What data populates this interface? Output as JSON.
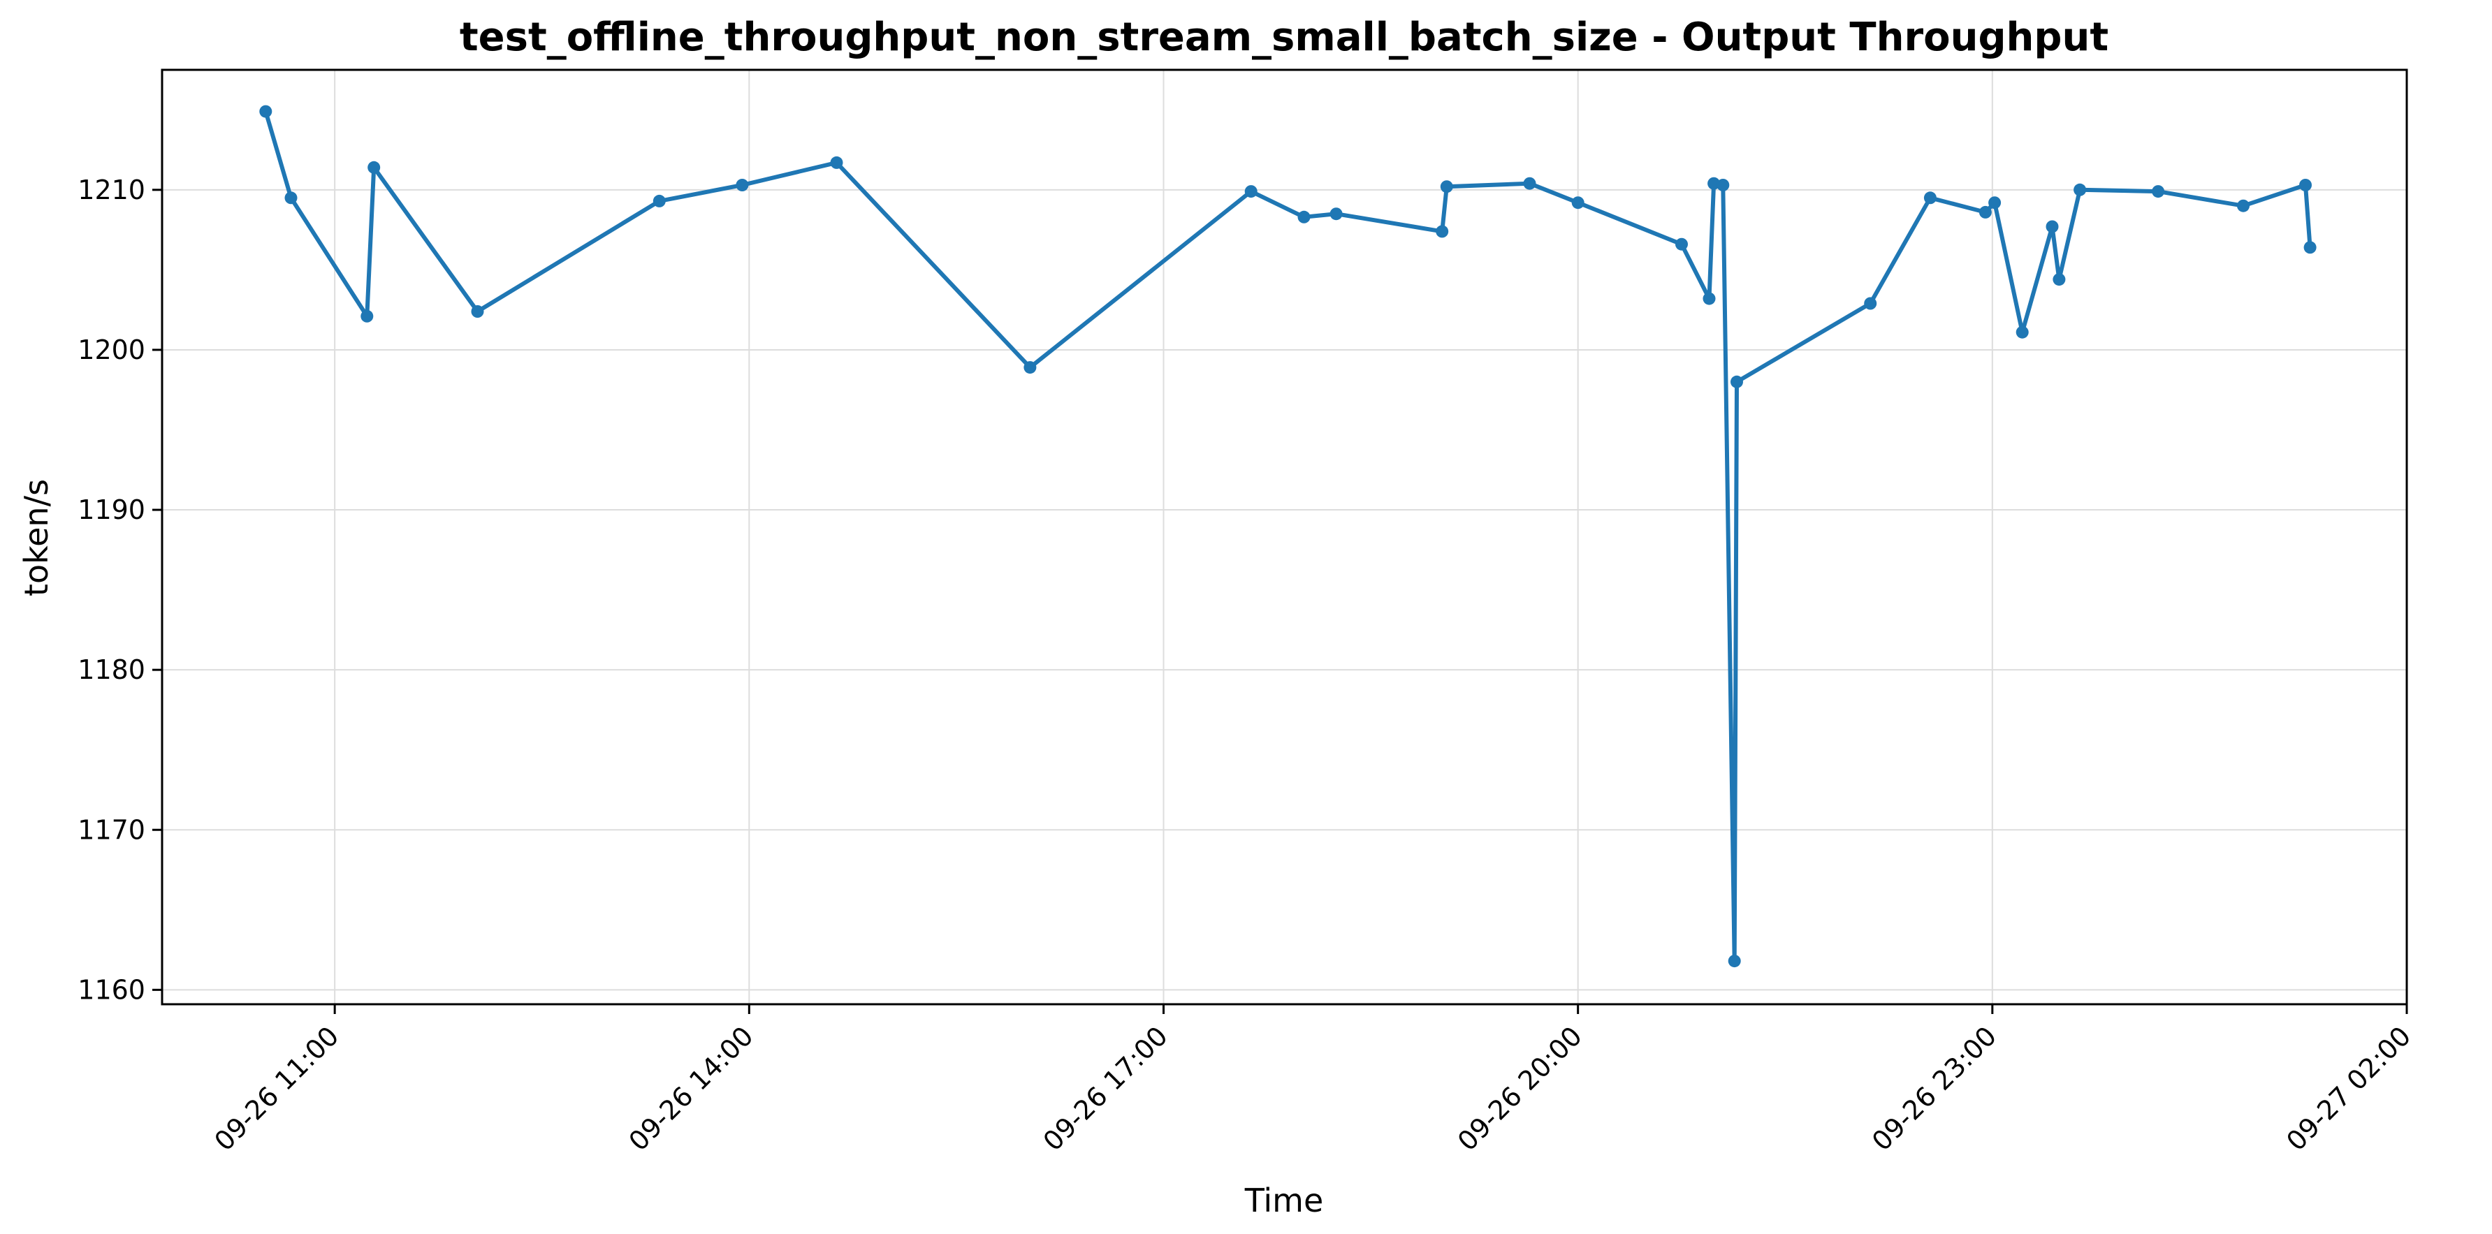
{
  "chart_data": {
    "type": "line",
    "title": "test_offline_throughput_non_stream_small_batch_size - Output Throughput",
    "xlabel": "Time",
    "ylabel": "token/s",
    "grid": true,
    "legend": "none",
    "color": "#1f77b4",
    "xlim": [
      "2025-09-26 09:45",
      "2025-09-27 02:00"
    ],
    "ylim": [
      1159.1,
      1217.5
    ],
    "x_ticks": [
      {
        "value": "2025-09-26 11:00",
        "label": "09-26 11:00"
      },
      {
        "value": "2025-09-26 14:00",
        "label": "09-26 14:00"
      },
      {
        "value": "2025-09-26 17:00",
        "label": "09-26 17:00"
      },
      {
        "value": "2025-09-26 20:00",
        "label": "09-26 20:00"
      },
      {
        "value": "2025-09-26 23:00",
        "label": "09-26 23:00"
      },
      {
        "value": "2025-09-27 02:00",
        "label": "09-27 02:00"
      }
    ],
    "y_ticks": [
      1160,
      1170,
      1180,
      1190,
      1200,
      1210
    ],
    "series": [
      {
        "x": [
          "2025-09-26 10:30",
          "2025-09-26 10:41",
          "2025-09-26 11:14",
          "2025-09-26 11:17",
          "2025-09-26 12:02",
          "2025-09-26 13:21",
          "2025-09-26 13:57",
          "2025-09-26 14:38",
          "2025-09-26 16:02",
          "2025-09-26 17:38",
          "2025-09-26 18:01",
          "2025-09-26 18:15",
          "2025-09-26 19:01",
          "2025-09-26 19:03",
          "2025-09-26 19:39",
          "2025-09-26 20:00",
          "2025-09-26 20:45",
          "2025-09-26 20:57",
          "2025-09-26 20:59",
          "2025-09-26 21:03",
          "2025-09-26 21:08",
          "2025-09-26 21:09",
          "2025-09-26 22:07",
          "2025-09-26 22:33",
          "2025-09-26 22:57",
          "2025-09-26 23:01",
          "2025-09-26 23:13",
          "2025-09-26 23:26",
          "2025-09-26 23:29",
          "2025-09-26 23:38",
          "2025-09-27 00:12",
          "2025-09-27 00:49",
          "2025-09-27 01:16",
          "2025-09-27 01:18"
        ],
        "y": [
          1214.9,
          1209.5,
          1202.1,
          1211.4,
          1202.4,
          1209.3,
          1210.3,
          1211.7,
          1198.9,
          1209.9,
          1208.3,
          1208.5,
          1207.4,
          1210.2,
          1210.4,
          1209.2,
          1206.6,
          1203.2,
          1210.4,
          1210.3,
          1161.8,
          1198.0,
          1202.9,
          1209.5,
          1208.6,
          1209.2,
          1201.1,
          1207.7,
          1204.4,
          1210.0,
          1209.9,
          1209.0,
          1210.3,
          1206.4
        ]
      }
    ]
  }
}
